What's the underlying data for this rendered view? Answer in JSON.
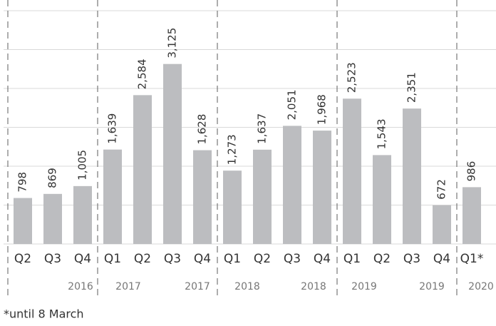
{
  "chart_data": {
    "type": "bar",
    "categories": [
      "Q2",
      "Q3",
      "Q4",
      "Q1",
      "Q2",
      "Q3",
      "Q4",
      "Q1",
      "Q2",
      "Q3",
      "Q4",
      "Q1",
      "Q2",
      "Q3",
      "Q4",
      "Q1*"
    ],
    "values": [
      798,
      869,
      1005,
      1639,
      2584,
      3125,
      1628,
      1273,
      1637,
      2051,
      1968,
      2523,
      1543,
      2351,
      672,
      986
    ],
    "value_labels": [
      "798",
      "869",
      "1,005",
      "1,639",
      "2,584",
      "3,125",
      "1,628",
      "1,273",
      "1,637",
      "2,051",
      "1,968",
      "2,523",
      "1,543",
      "2,351",
      "672",
      "986"
    ],
    "color": "#bcbdc0",
    "year_labels": [
      "2016",
      "2017",
      "2017",
      "2018",
      "2018",
      "2019",
      "2019",
      "2020"
    ],
    "ylim": [
      0,
      4050
    ],
    "yticks": [
      0,
      675,
      1350,
      2025,
      2700,
      3375,
      4050
    ],
    "grid": true,
    "footnote": "*until 8 March"
  }
}
